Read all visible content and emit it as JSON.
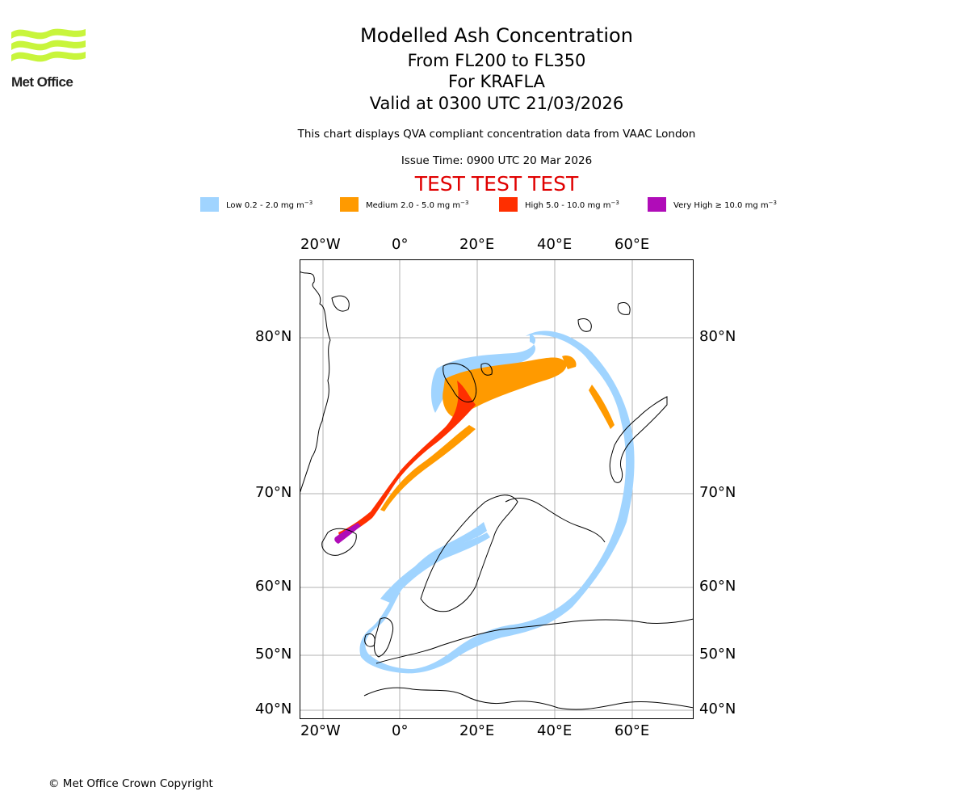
{
  "logo": {
    "text": "Met Office"
  },
  "header": {
    "title": "Modelled Ash Concentration",
    "levels": "From FL200 to FL350",
    "volcano": "For KRAFLA",
    "valid": "Valid at 0300 UTC 21/03/2026",
    "subtitle": "This chart displays QVA compliant concentration data from VAAC London",
    "issue": "Issue Time: 0900 UTC 20 Mar 2026",
    "test_banner": "TEST TEST TEST"
  },
  "legend": [
    {
      "label": "Low 0.2 - 2.0 mg m",
      "unit_sup": "−3",
      "color": "#a0d4ff"
    },
    {
      "label": "Medium 2.0 - 5.0 mg m",
      "unit_sup": "−3",
      "color": "#ff9a00"
    },
    {
      "label": "High 5.0 - 10.0 mg m",
      "unit_sup": "−3",
      "color": "#ff2f00"
    },
    {
      "label": "Very High  ≥  10.0 mg m",
      "unit_sup": "−3",
      "color": "#b00cb8"
    }
  ],
  "axes": {
    "lon_top": [
      "20°W",
      "0°",
      "20°E",
      "40°E",
      "60°E"
    ],
    "lon_bottom": [
      "20°W",
      "0°",
      "20°E",
      "40°E",
      "60°E"
    ],
    "lat_left": [
      "80°N",
      "70°N",
      "60°N",
      "50°N",
      "40°N"
    ],
    "lat_right": [
      "80°N",
      "70°N",
      "60°N",
      "50°N",
      "40°N"
    ]
  },
  "colors": {
    "title": "#000000",
    "test_banner": "#e00000",
    "logo_green": "#c8f53c"
  },
  "footer": {
    "copyright": "© Met Office Crown Copyright"
  }
}
